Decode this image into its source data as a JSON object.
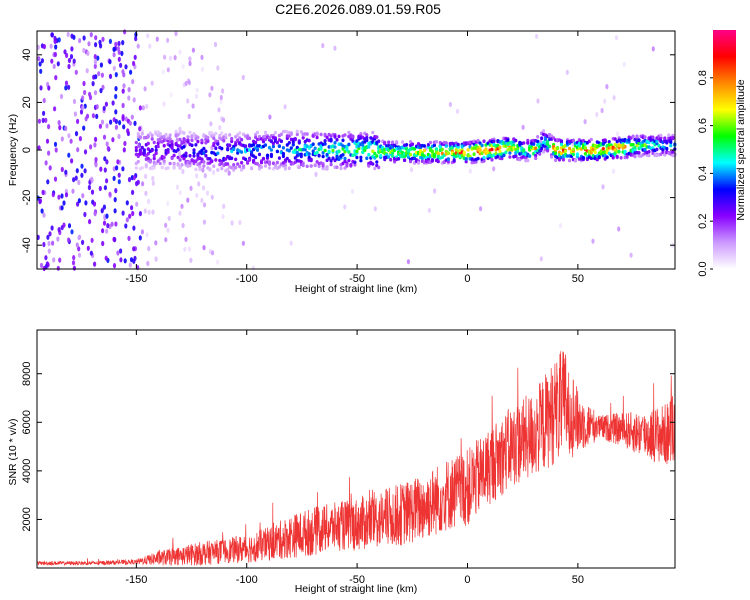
{
  "title": "C2E6.2026.089.01.59.R05",
  "chart_data": [
    {
      "type": "heatmap",
      "xlabel": "Height of straight line (km)",
      "ylabel": "Frequency (Hz)",
      "xlim": [
        -195,
        94
      ],
      "ylim": [
        -50,
        50
      ],
      "xticks": [
        "-150",
        "-100",
        "-50",
        "0",
        "50"
      ],
      "xtick_values": [
        -150,
        -100,
        -50,
        0,
        50
      ],
      "yticks": [
        "-40",
        "-20",
        "0",
        "20",
        "40"
      ],
      "ytick_values": [
        -40,
        -20,
        0,
        20,
        40
      ],
      "colorbar": {
        "label": "Normalized spectral amplitude",
        "range": [
          0,
          1
        ],
        "ticks": [
          "0.0",
          "0.2",
          "0.4",
          "0.6",
          "0.8"
        ],
        "tick_values": [
          0.0,
          0.2,
          0.4,
          0.6,
          0.8
        ],
        "colormap": [
          "#ffffff",
          "#cc99ff",
          "#8800ff",
          "#0000ff",
          "#00ffff",
          "#00ff00",
          "#ffff00",
          "#ff8800",
          "#ff0000",
          "#ff0088"
        ]
      },
      "ridge": {
        "x": [
          -148,
          -130,
          -110,
          -90,
          -70,
          -50,
          -30,
          -10,
          0,
          10,
          20,
          25,
          30,
          35,
          40,
          50,
          60,
          70,
          80,
          90
        ],
        "frequency": [
          0,
          0,
          -1,
          0,
          0,
          0,
          -1,
          -1,
          -1,
          0,
          1,
          0,
          0,
          4,
          0,
          0,
          0,
          1,
          2,
          2
        ],
        "amplitude": [
          0.3,
          0.35,
          0.4,
          0.45,
          0.5,
          0.6,
          0.7,
          0.8,
          0.9,
          0.9,
          0.85,
          0.6,
          0.8,
          0.5,
          0.9,
          0.85,
          0.9,
          0.85,
          0.6,
          0.5
        ]
      },
      "grid": false
    },
    {
      "type": "line",
      "xlabel": "Height of straight line (km)",
      "ylabel": "SNR (10 * v/v)",
      "xlim": [
        -195,
        94
      ],
      "ylim": [
        0,
        9800
      ],
      "xticks": [
        "-150",
        "-100",
        "-50",
        "0",
        "50"
      ],
      "xtick_values": [
        -150,
        -100,
        -50,
        0,
        50
      ],
      "yticks": [
        "2000",
        "4000",
        "6000",
        "8000"
      ],
      "ytick_values": [
        2000,
        4000,
        6000,
        8000
      ],
      "series": [
        {
          "color": "#ee3333",
          "x": [
            -195,
            -170,
            -150,
            -140,
            -130,
            -120,
            -110,
            -100,
            -90,
            -80,
            -70,
            -60,
            -50,
            -40,
            -30,
            -20,
            -10,
            0,
            10,
            20,
            30,
            35,
            40,
            45,
            50,
            60,
            70,
            80,
            90,
            94
          ],
          "y": [
            200,
            200,
            250,
            400,
            500,
            600,
            700,
            800,
            1000,
            1300,
            1500,
            1700,
            1800,
            2000,
            2200,
            2500,
            3000,
            3300,
            4200,
            5000,
            5500,
            6000,
            6500,
            6800,
            6000,
            5800,
            5700,
            5500,
            5500,
            5700
          ],
          "spread": [
            80,
            80,
            100,
            300,
            400,
            500,
            500,
            600,
            700,
            900,
            1000,
            1000,
            1100,
            1200,
            1300,
            1400,
            1500,
            1600,
            1600,
            1700,
            1800,
            2000,
            2200,
            2400,
            1300,
            500,
            700,
            1000,
            1300,
            1600
          ]
        }
      ],
      "grid": false
    }
  ]
}
